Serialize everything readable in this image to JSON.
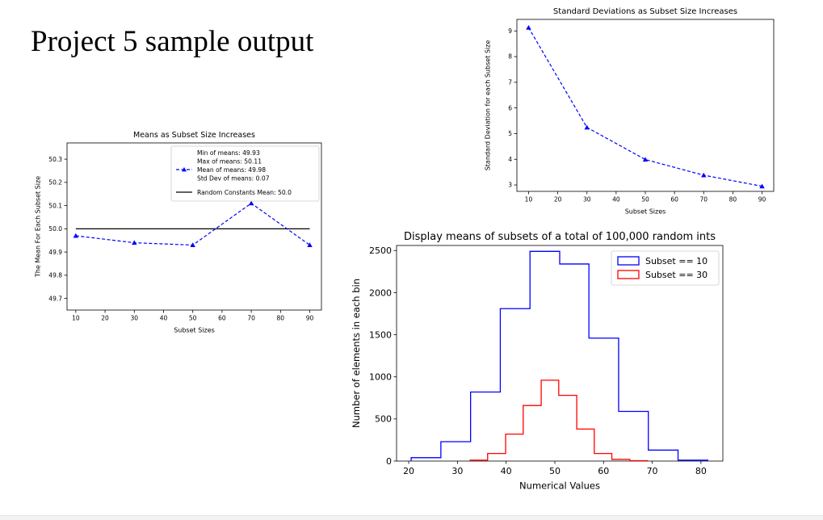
{
  "slide": {
    "title": "Project 5 sample output"
  },
  "colors": {
    "blue": "#0000ff",
    "red": "#ff0000",
    "black": "#000000"
  },
  "chart_data": [
    {
      "id": "means",
      "type": "line",
      "title": "Means as Subset Size Increases",
      "xlabel": "Subset Sizes",
      "ylabel": "The Mean For Each Subset Size",
      "xlim": [
        7,
        94
      ],
      "ylim": [
        49.65,
        50.37
      ],
      "xticks": [
        "10",
        "20",
        "30",
        "40",
        "50",
        "60",
        "70",
        "80",
        "90"
      ],
      "yticks": [
        "49.7",
        "49.8",
        "49.9",
        "50.0",
        "50.1",
        "50.2",
        "50.3"
      ],
      "x": [
        10,
        30,
        50,
        70,
        90
      ],
      "y": [
        49.97,
        49.94,
        49.93,
        50.11,
        49.93
      ],
      "constant": 50.0,
      "legend": {
        "series_lines": [
          "Min of means: 49.93",
          "Max of means: 50.11",
          "Mean of means: 49.98",
          "Std Dev of means: 0.07"
        ],
        "constant_label": "Random Constants Mean: 50.0"
      }
    },
    {
      "id": "stds",
      "type": "line",
      "title": "Standard Deviations as Subset Size Increases",
      "xlabel": "Subset Sizes",
      "ylabel": "Standard Deviation for each Subset Size",
      "xlim": [
        6,
        94
      ],
      "ylim": [
        2.75,
        9.45
      ],
      "xticks": [
        "10",
        "20",
        "30",
        "40",
        "50",
        "60",
        "70",
        "80",
        "90"
      ],
      "yticks": [
        "3",
        "4",
        "5",
        "6",
        "7",
        "8",
        "9"
      ],
      "x": [
        10,
        30,
        50,
        70,
        90
      ],
      "y": [
        9.13,
        5.24,
        3.99,
        3.38,
        2.95
      ]
    },
    {
      "id": "hist",
      "type": "bar",
      "title": "Display means of subsets of a total of 100,000 random ints",
      "xlabel": "Numerical Values",
      "ylabel": "Number of elements in each bin",
      "xlim": [
        17.5,
        84.5
      ],
      "ylim": [
        0,
        2560
      ],
      "xticks": [
        "20",
        "30",
        "40",
        "50",
        "60",
        "70",
        "80"
      ],
      "yticks": [
        "0",
        "500",
        "1000",
        "1500",
        "2000",
        "2500"
      ],
      "series": [
        {
          "name": "Subset == 10",
          "edges": [
            20.5,
            26.6,
            32.7,
            38.8,
            44.9,
            51.0,
            57.0,
            63.1,
            69.2,
            75.3,
            81.4
          ],
          "values": [
            40,
            230,
            820,
            1810,
            2490,
            2340,
            1460,
            590,
            130,
            10
          ]
        },
        {
          "name": "Subset == 30",
          "edges": [
            32.6,
            36.2,
            39.9,
            43.5,
            47.2,
            50.8,
            54.5,
            58.1,
            61.7,
            65.4,
            69.0
          ],
          "values": [
            10,
            90,
            320,
            660,
            960,
            780,
            380,
            90,
            20,
            5
          ]
        }
      ]
    }
  ]
}
